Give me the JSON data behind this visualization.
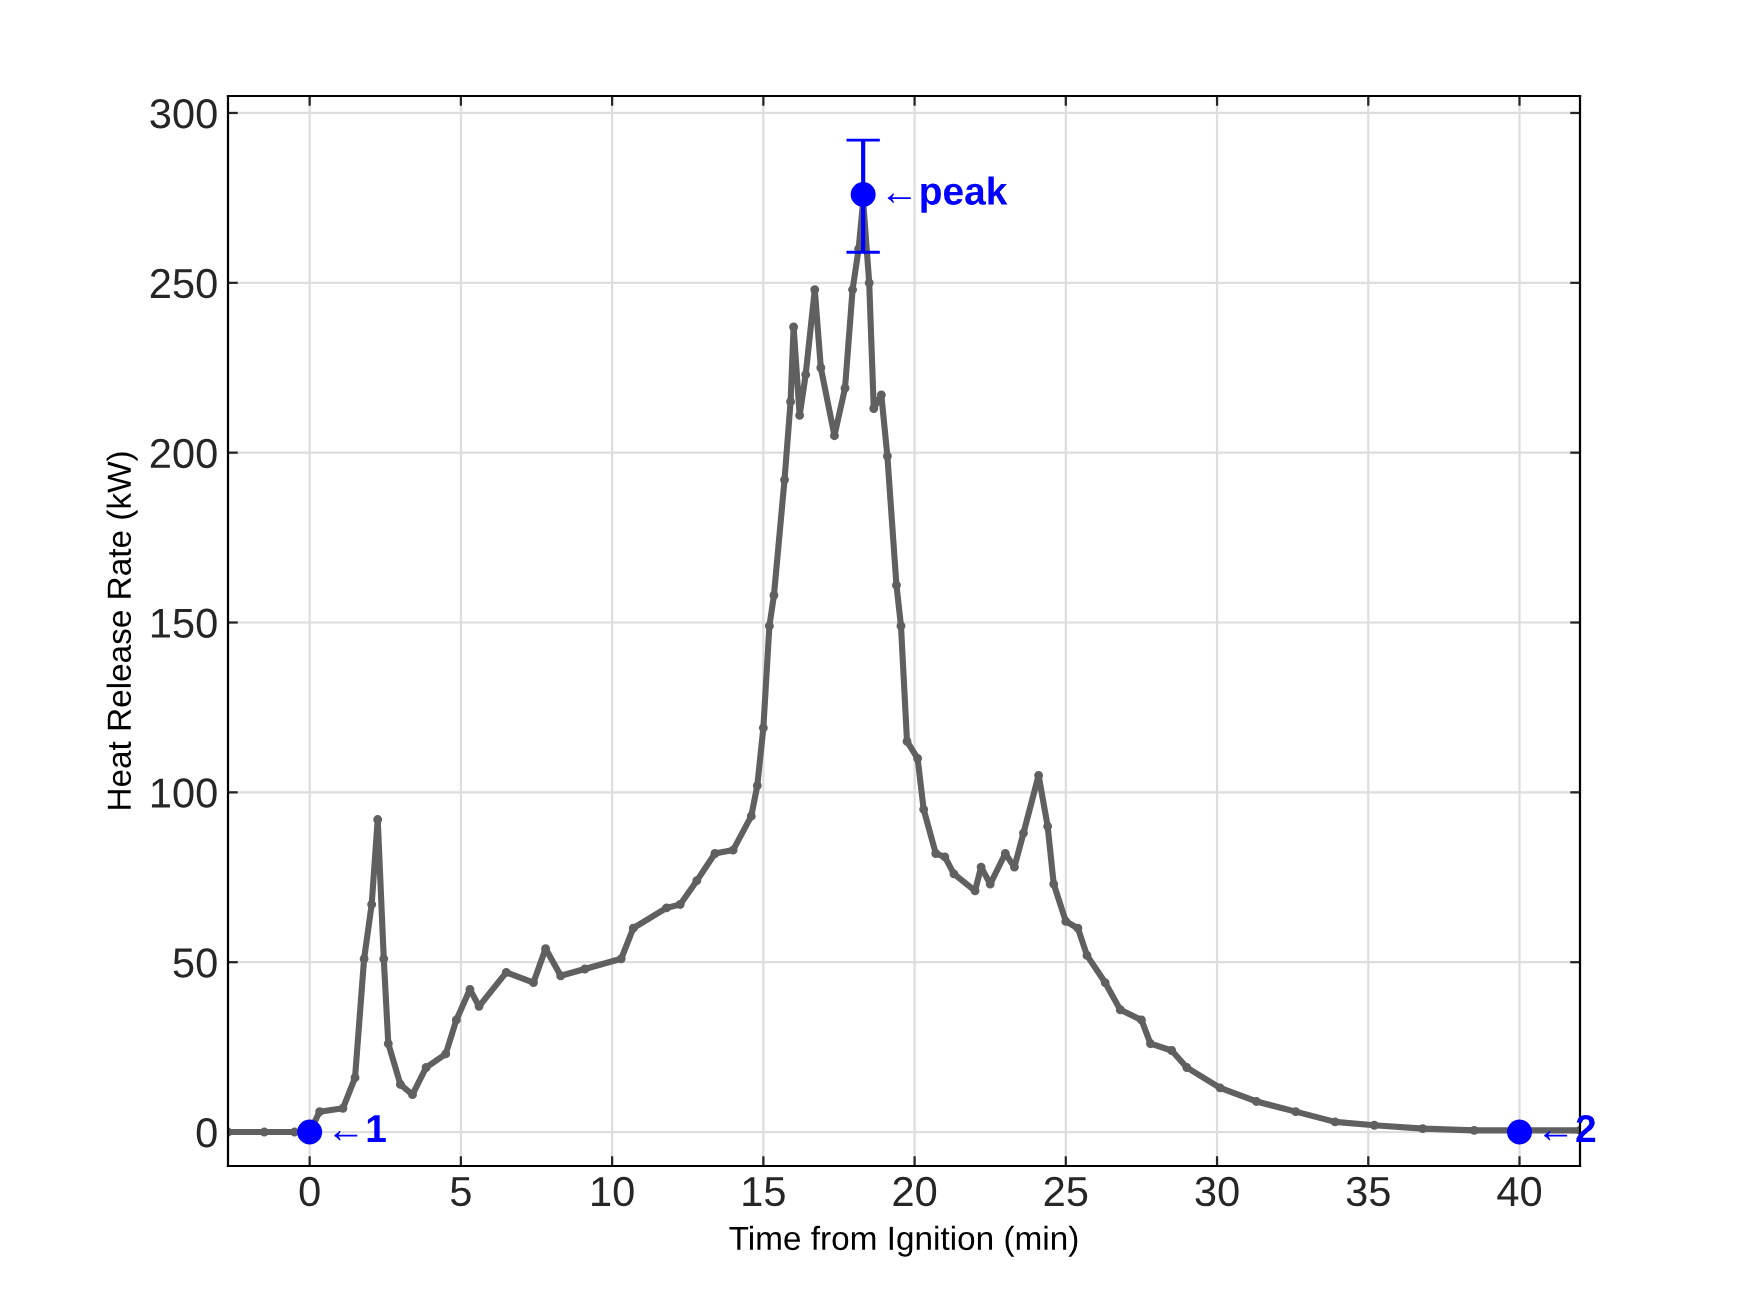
{
  "chart_data": {
    "type": "line",
    "xlabel": "Time from Ignition (min)",
    "ylabel": "Heat Release Rate (kW)",
    "xlim": [
      -2.7,
      42
    ],
    "ylim": [
      -10,
      305
    ],
    "xticks": [
      0,
      5,
      10,
      15,
      20,
      25,
      30,
      35,
      40
    ],
    "yticks": [
      0,
      50,
      100,
      150,
      200,
      250,
      300
    ],
    "grid": true,
    "series": [
      {
        "color": "#606060",
        "marker": "circle",
        "line_style": "solid",
        "x": [
          -2.7,
          -1.5,
          -0.5,
          0,
          0.33,
          1.1,
          1.5,
          1.8,
          2.05,
          2.25,
          2.45,
          2.6,
          3.0,
          3.4,
          3.85,
          4.5,
          4.85,
          5.3,
          5.6,
          6.5,
          7.4,
          7.8,
          8.3,
          9.1,
          10.3,
          10.7,
          11.8,
          12.25,
          12.8,
          13.4,
          14.0,
          14.6,
          14.8,
          15.0,
          15.2,
          15.35,
          15.7,
          15.9,
          16.0,
          16.2,
          16.4,
          16.7,
          16.9,
          17.35,
          17.7,
          17.95,
          18.15,
          18.3,
          18.5,
          18.65,
          18.9,
          19.1,
          19.4,
          19.55,
          19.75,
          20.1,
          20.3,
          20.7,
          21.0,
          21.3,
          22.0,
          22.2,
          22.5,
          23.0,
          23.3,
          23.6,
          24.1,
          24.4,
          24.6,
          25.0,
          25.4,
          25.7,
          26.3,
          26.8,
          27.5,
          27.8,
          28.5,
          29.0,
          30.1,
          31.3,
          32.6,
          33.9,
          35.2,
          36.8,
          38.5,
          42
        ],
        "values": [
          0,
          0,
          0,
          0,
          6,
          7,
          16,
          51,
          67,
          92,
          51,
          26,
          14,
          11,
          19,
          23,
          33,
          42,
          37,
          47,
          44,
          54,
          46,
          48,
          51,
          60,
          66,
          67,
          74,
          82,
          83,
          93,
          102,
          119,
          149,
          158,
          192,
          215,
          237,
          211,
          223,
          248,
          225,
          205,
          219,
          248,
          260,
          274,
          250,
          213,
          217,
          199,
          161,
          149,
          115,
          110,
          95,
          82,
          81,
          76,
          71,
          78,
          73,
          82,
          78,
          88,
          105,
          90,
          73,
          62,
          60,
          52,
          44,
          36,
          33,
          26,
          24,
          19,
          13,
          9,
          6,
          3,
          2,
          1,
          0.5,
          0.5
        ]
      },
      {
        "type": "scatter",
        "color": "#0000ff",
        "marker": "circle",
        "x": [
          0,
          18.3,
          40
        ],
        "values": [
          0,
          276,
          0
        ],
        "errors": [
          null,
          [
            259,
            292
          ],
          null
        ]
      }
    ],
    "annotations": [
      {
        "text": "←1",
        "x": 0,
        "y": 0
      },
      {
        "text": "←peak",
        "x": 18.3,
        "y": 276
      },
      {
        "text": "←2",
        "x": 40,
        "y": 0
      }
    ]
  }
}
